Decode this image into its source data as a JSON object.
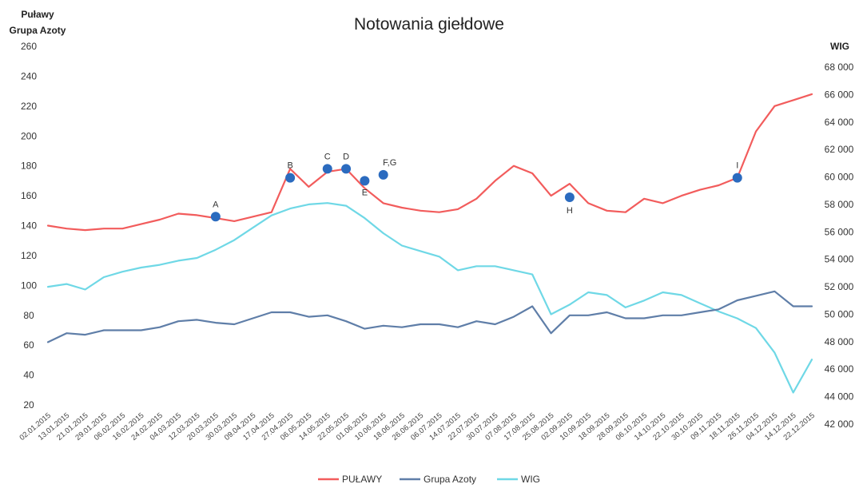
{
  "chart_data": {
    "type": "line",
    "title": "Notowania giełdowe",
    "ylabel_left": [
      "Puławy",
      "Grupa Azoty"
    ],
    "ylabel_right": "WIG",
    "ylim_left": [
      20,
      260
    ],
    "yticks_left": [
      "260",
      "240",
      "220",
      "200",
      "180",
      "160",
      "140",
      "120",
      "100",
      "80",
      "60",
      "40",
      "20"
    ],
    "ylim_right": [
      42000,
      68000
    ],
    "yticks_right": [
      "68 000",
      "66 000",
      "64 000",
      "62 000",
      "60 000",
      "58 000",
      "56 000",
      "54 000",
      "52 000",
      "50 000",
      "48 000",
      "46 000",
      "44 000",
      "42 000"
    ],
    "grid": false,
    "legend": "bottom",
    "categories": [
      "02.01.2015",
      "13.01.2015",
      "21.01.2015",
      "29.01.2015",
      "06.02.2015",
      "16.02.2015",
      "24.02.2015",
      "04.03.2015",
      "12.03.2015",
      "20.03.2015",
      "30.03.2015",
      "09.04.2015",
      "17.04.2015",
      "27.04.2015",
      "06.05.2015",
      "14.05.2015",
      "22.05.2015",
      "01.06.2015",
      "10.06.2015",
      "18.06.2015",
      "26.06.2015",
      "06.07.2015",
      "14.07.2015",
      "22.07.2015",
      "30.07.2015",
      "07.08.2015",
      "17.08.2015",
      "25.08.2015",
      "02.09.2015",
      "10.09.2015",
      "18.09.2015",
      "28.09.2015",
      "06.10.2015",
      "14.10.2015",
      "22.10.2015",
      "30.10.2015",
      "09.11.2015",
      "18.11.2015",
      "26.11.2015",
      "04.12.2015",
      "14.12.2015",
      "22.12.2015"
    ],
    "series": [
      {
        "name": "PUŁAWY",
        "color": "#f25c5c",
        "axis": "left",
        "values": [
          140,
          138,
          137,
          138,
          138,
          141,
          144,
          148,
          147,
          145,
          143,
          146,
          149,
          178,
          166,
          176,
          178,
          165,
          155,
          152,
          150,
          149,
          151,
          158,
          170,
          180,
          175,
          160,
          168,
          155,
          150,
          149,
          158,
          155,
          160,
          164,
          167,
          172,
          203,
          220,
          224,
          228
        ]
      },
      {
        "name": "Grupa Azoty",
        "color": "#5f7ea8",
        "axis": "left",
        "values": [
          62,
          68,
          67,
          70,
          70,
          70,
          72,
          76,
          77,
          75,
          74,
          78,
          82,
          82,
          79,
          80,
          76,
          71,
          73,
          72,
          74,
          74,
          72,
          76,
          74,
          79,
          86,
          68,
          80,
          80,
          82,
          78,
          78,
          80,
          80,
          82,
          84,
          90,
          93,
          96,
          86,
          86
        ]
      },
      {
        "name": "WIG",
        "color": "#6fd8e6",
        "axis": "right",
        "values": [
          52000,
          52200,
          51800,
          52700,
          53100,
          53400,
          53600,
          53900,
          54100,
          54700,
          55400,
          56300,
          57200,
          57700,
          58000,
          58100,
          57900,
          57000,
          55900,
          55000,
          54600,
          54200,
          53200,
          53500,
          53500,
          53200,
          52900,
          50000,
          50700,
          51600,
          51400,
          50500,
          51000,
          51600,
          51400,
          50800,
          50200,
          49700,
          49000,
          47200,
          44300,
          46700
        ]
      }
    ],
    "annotations": [
      {
        "label": "A",
        "category": "20.03.2015",
        "series": "PUŁAWY",
        "value": 146
      },
      {
        "label": "B",
        "category": "27.04.2015",
        "series": "PUŁAWY",
        "value": 172
      },
      {
        "label": "C",
        "category": "14.05.2015",
        "series": "PUŁAWY",
        "value": 178
      },
      {
        "label": "D",
        "category": "22.05.2015",
        "series": "PUŁAWY",
        "value": 178
      },
      {
        "label": "E",
        "category": "01.06.2015",
        "series": "PUŁAWY",
        "value": 170
      },
      {
        "label": "F,G",
        "category": "10.06.2015",
        "series": "PUŁAWY",
        "value": 174
      },
      {
        "label": "H",
        "category": "02.09.2015",
        "series": "PUŁAWY",
        "value": 159
      },
      {
        "label": "I",
        "category": "18.11.2015",
        "series": "PUŁAWY",
        "value": 172
      }
    ]
  }
}
